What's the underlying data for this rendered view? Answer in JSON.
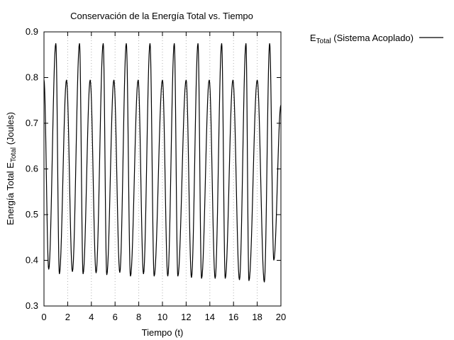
{
  "chart_data": {
    "type": "line",
    "title": "Conservación de la Energía Total vs. Tiempo",
    "xlabel": "Tiempo (t)",
    "ylabel": {
      "base": "Energía Total E",
      "sub": "Total",
      "suffix": " (Joules)"
    },
    "xlim": [
      0,
      20
    ],
    "ylim": [
      0.3,
      0.9
    ],
    "xticks": [
      0,
      2,
      4,
      6,
      8,
      10,
      12,
      14,
      16,
      18,
      20
    ],
    "yticks": [
      0.3,
      0.4,
      0.5,
      0.6,
      0.7,
      0.8,
      0.9
    ],
    "grid": {
      "vertical": true,
      "horizontal": false
    },
    "legend_position": "outside-top-right",
    "series": [
      {
        "legend": {
          "base": "E",
          "sub": "Total",
          "suffix": " (Sistema Acoplado)"
        },
        "color": "#000000",
        "x": [
          0.0,
          0.4,
          1.0,
          1.3,
          1.9,
          2.4,
          3.0,
          3.3,
          3.9,
          4.4,
          5.0,
          5.3,
          5.9,
          6.4,
          6.95,
          7.3,
          7.95,
          8.4,
          8.95,
          9.3,
          10.0,
          10.45,
          11.0,
          11.3,
          12.0,
          12.45,
          13.0,
          13.3,
          13.95,
          14.45,
          15.0,
          15.3,
          15.95,
          16.5,
          17.05,
          17.3,
          18.0,
          18.6,
          19.05,
          19.4,
          20.0
        ],
        "y": [
          0.795,
          0.38,
          0.875,
          0.37,
          0.795,
          0.375,
          0.875,
          0.37,
          0.795,
          0.372,
          0.875,
          0.368,
          0.795,
          0.373,
          0.875,
          0.365,
          0.795,
          0.37,
          0.875,
          0.365,
          0.795,
          0.365,
          0.875,
          0.365,
          0.795,
          0.362,
          0.875,
          0.36,
          0.795,
          0.36,
          0.875,
          0.36,
          0.795,
          0.357,
          0.875,
          0.355,
          0.795,
          0.352,
          0.875,
          0.4,
          0.74
        ]
      }
    ]
  }
}
